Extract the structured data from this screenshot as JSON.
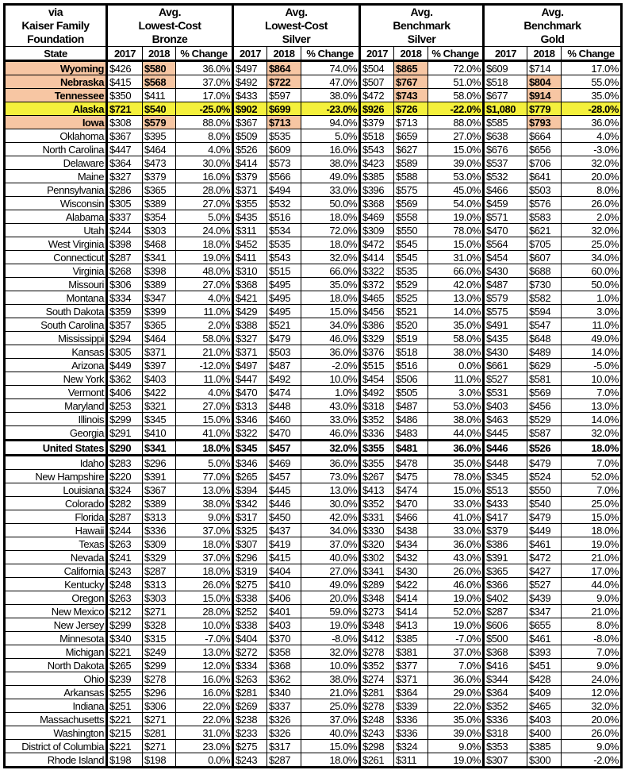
{
  "header": {
    "source": "via\nKaiser Family\nFoundation",
    "groups": [
      "Avg.\nLowest-Cost\nBronze",
      "Avg.\nLowest-Cost\nSilver",
      "Avg.\nBenchmark\nSilver",
      "Avg.\nBenchmark\nGold"
    ],
    "state_label": "State",
    "year1": "2017",
    "year2": "2018",
    "change": "% Change"
  },
  "colors": {
    "highlight": "#f7c6a3",
    "alaska": "#f4f03c"
  },
  "columns": [
    "state",
    "bronze_2017",
    "bronze_2018",
    "bronze_change",
    "lcsilver_2017",
    "lcsilver_2018",
    "lcsilver_change",
    "bmsilver_2017",
    "bmsilver_2018",
    "bmsilver_change",
    "gold_2017",
    "gold_2018",
    "gold_change"
  ],
  "rows": [
    {
      "cells": [
        "Wyoming",
        "$426",
        "$580",
        "36.0%",
        "$497",
        "$864",
        "74.0%",
        "$504",
        "$865",
        "72.0%",
        "$609",
        "$714",
        "17.0%"
      ],
      "highlight": [
        0,
        2,
        5,
        8
      ]
    },
    {
      "cells": [
        "Nebraska",
        "$415",
        "$568",
        "37.0%",
        "$492",
        "$722",
        "47.0%",
        "$507",
        "$767",
        "51.0%",
        "$518",
        "$804",
        "55.0%"
      ],
      "highlight": [
        0,
        2,
        5,
        8,
        11
      ]
    },
    {
      "cells": [
        "Tennessee",
        "$350",
        "$411",
        "17.0%",
        "$433",
        "$597",
        "38.0%",
        "$472",
        "$743",
        "58.0%",
        "$677",
        "$914",
        "35.0%"
      ],
      "highlight": [
        0,
        8,
        11
      ]
    },
    {
      "cells": [
        "Alaska",
        "$721",
        "$540",
        "-25.0%",
        "$902",
        "$699",
        "-23.0%",
        "$926",
        "$726",
        "-22.0%",
        "$1,080",
        "$779",
        "-28.0%"
      ],
      "style": "yellow"
    },
    {
      "cells": [
        "Iowa",
        "$308",
        "$579",
        "88.0%",
        "$367",
        "$713",
        "94.0%",
        "$379",
        "$713",
        "88.0%",
        "$585",
        "$793",
        "36.0%"
      ],
      "highlight": [
        0,
        2,
        5,
        11
      ]
    },
    {
      "cells": [
        "Oklahoma",
        "$367",
        "$395",
        "8.0%",
        "$509",
        "$535",
        "5.0%",
        "$518",
        "$659",
        "27.0%",
        "$638",
        "$664",
        "4.0%"
      ]
    },
    {
      "cells": [
        "North Carolina",
        "$447",
        "$464",
        "4.0%",
        "$526",
        "$609",
        "16.0%",
        "$543",
        "$627",
        "15.0%",
        "$676",
        "$656",
        "-3.0%"
      ]
    },
    {
      "cells": [
        "Delaware",
        "$364",
        "$473",
        "30.0%",
        "$414",
        "$573",
        "38.0%",
        "$423",
        "$589",
        "39.0%",
        "$537",
        "$706",
        "32.0%"
      ]
    },
    {
      "cells": [
        "Maine",
        "$327",
        "$379",
        "16.0%",
        "$379",
        "$566",
        "49.0%",
        "$385",
        "$588",
        "53.0%",
        "$532",
        "$641",
        "20.0%"
      ]
    },
    {
      "cells": [
        "Pennsylvania",
        "$286",
        "$365",
        "28.0%",
        "$371",
        "$494",
        "33.0%",
        "$396",
        "$575",
        "45.0%",
        "$466",
        "$503",
        "8.0%"
      ]
    },
    {
      "cells": [
        "Wisconsin",
        "$305",
        "$389",
        "27.0%",
        "$355",
        "$532",
        "50.0%",
        "$368",
        "$569",
        "54.0%",
        "$459",
        "$576",
        "26.0%"
      ]
    },
    {
      "cells": [
        "Alabama",
        "$337",
        "$354",
        "5.0%",
        "$435",
        "$516",
        "18.0%",
        "$469",
        "$558",
        "19.0%",
        "$571",
        "$583",
        "2.0%"
      ]
    },
    {
      "cells": [
        "Utah",
        "$244",
        "$303",
        "24.0%",
        "$311",
        "$534",
        "72.0%",
        "$309",
        "$550",
        "78.0%",
        "$470",
        "$621",
        "32.0%"
      ]
    },
    {
      "cells": [
        "West Virginia",
        "$398",
        "$468",
        "18.0%",
        "$452",
        "$535",
        "18.0%",
        "$472",
        "$545",
        "15.0%",
        "$564",
        "$705",
        "25.0%"
      ]
    },
    {
      "cells": [
        "Connecticut",
        "$287",
        "$341",
        "19.0%",
        "$411",
        "$543",
        "32.0%",
        "$414",
        "$545",
        "31.0%",
        "$454",
        "$607",
        "34.0%"
      ]
    },
    {
      "cells": [
        "Virginia",
        "$268",
        "$398",
        "48.0%",
        "$310",
        "$515",
        "66.0%",
        "$322",
        "$535",
        "66.0%",
        "$430",
        "$688",
        "60.0%"
      ]
    },
    {
      "cells": [
        "Missouri",
        "$306",
        "$389",
        "27.0%",
        "$368",
        "$495",
        "35.0%",
        "$372",
        "$529",
        "42.0%",
        "$487",
        "$730",
        "50.0%"
      ]
    },
    {
      "cells": [
        "Montana",
        "$334",
        "$347",
        "4.0%",
        "$421",
        "$495",
        "18.0%",
        "$465",
        "$525",
        "13.0%",
        "$579",
        "$582",
        "1.0%"
      ]
    },
    {
      "cells": [
        "South Dakota",
        "$359",
        "$399",
        "11.0%",
        "$429",
        "$495",
        "15.0%",
        "$456",
        "$521",
        "14.0%",
        "$575",
        "$594",
        "3.0%"
      ]
    },
    {
      "cells": [
        "South Carolina",
        "$357",
        "$365",
        "2.0%",
        "$388",
        "$521",
        "34.0%",
        "$386",
        "$520",
        "35.0%",
        "$491",
        "$547",
        "11.0%"
      ]
    },
    {
      "cells": [
        "Mississippi",
        "$294",
        "$464",
        "58.0%",
        "$327",
        "$479",
        "46.0%",
        "$329",
        "$519",
        "58.0%",
        "$435",
        "$648",
        "49.0%"
      ]
    },
    {
      "cells": [
        "Kansas",
        "$305",
        "$371",
        "21.0%",
        "$371",
        "$503",
        "36.0%",
        "$376",
        "$518",
        "38.0%",
        "$430",
        "$489",
        "14.0%"
      ]
    },
    {
      "cells": [
        "Arizona",
        "$449",
        "$397",
        "-12.0%",
        "$497",
        "$487",
        "-2.0%",
        "$515",
        "$516",
        "0.0%",
        "$661",
        "$629",
        "-5.0%"
      ]
    },
    {
      "cells": [
        "New York",
        "$362",
        "$403",
        "11.0%",
        "$447",
        "$492",
        "10.0%",
        "$454",
        "$506",
        "11.0%",
        "$527",
        "$581",
        "10.0%"
      ]
    },
    {
      "cells": [
        "Vermont",
        "$406",
        "$422",
        "4.0%",
        "$470",
        "$474",
        "1.0%",
        "$492",
        "$505",
        "3.0%",
        "$531",
        "$569",
        "7.0%"
      ]
    },
    {
      "cells": [
        "Maryland",
        "$253",
        "$321",
        "27.0%",
        "$313",
        "$448",
        "43.0%",
        "$318",
        "$487",
        "53.0%",
        "$403",
        "$456",
        "13.0%"
      ]
    },
    {
      "cells": [
        "Illinois",
        "$299",
        "$345",
        "15.0%",
        "$346",
        "$460",
        "33.0%",
        "$352",
        "$486",
        "38.0%",
        "$463",
        "$529",
        "14.0%"
      ]
    },
    {
      "cells": [
        "Georgia",
        "$291",
        "$410",
        "41.0%",
        "$322",
        "$470",
        "46.0%",
        "$336",
        "$483",
        "44.0%",
        "$445",
        "$587",
        "32.0%"
      ]
    },
    {
      "cells": [
        "United States",
        "$290",
        "$341",
        "18.0%",
        "$345",
        "$457",
        "32.0%",
        "$355",
        "$481",
        "36.0%",
        "$446",
        "$526",
        "18.0%"
      ],
      "style": "us"
    },
    {
      "cells": [
        "Idaho",
        "$283",
        "$296",
        "5.0%",
        "$346",
        "$469",
        "36.0%",
        "$355",
        "$478",
        "35.0%",
        "$448",
        "$479",
        "7.0%"
      ]
    },
    {
      "cells": [
        "New Hampshire",
        "$220",
        "$391",
        "77.0%",
        "$265",
        "$457",
        "73.0%",
        "$267",
        "$475",
        "78.0%",
        "$345",
        "$524",
        "52.0%"
      ]
    },
    {
      "cells": [
        "Louisiana",
        "$324",
        "$367",
        "13.0%",
        "$394",
        "$445",
        "13.0%",
        "$413",
        "$474",
        "15.0%",
        "$513",
        "$550",
        "7.0%"
      ]
    },
    {
      "cells": [
        "Colorado",
        "$282",
        "$389",
        "38.0%",
        "$342",
        "$446",
        "30.0%",
        "$352",
        "$470",
        "33.0%",
        "$433",
        "$540",
        "25.0%"
      ]
    },
    {
      "cells": [
        "Florida",
        "$287",
        "$313",
        "9.0%",
        "$317",
        "$450",
        "42.0%",
        "$331",
        "$466",
        "41.0%",
        "$417",
        "$479",
        "15.0%"
      ]
    },
    {
      "cells": [
        "Hawaii",
        "$244",
        "$336",
        "37.0%",
        "$325",
        "$437",
        "34.0%",
        "$330",
        "$438",
        "33.0%",
        "$379",
        "$449",
        "18.0%"
      ]
    },
    {
      "cells": [
        "Texas",
        "$263",
        "$309",
        "18.0%",
        "$307",
        "$419",
        "37.0%",
        "$320",
        "$434",
        "36.0%",
        "$386",
        "$461",
        "19.0%"
      ]
    },
    {
      "cells": [
        "Nevada",
        "$241",
        "$329",
        "37.0%",
        "$296",
        "$415",
        "40.0%",
        "$302",
        "$432",
        "43.0%",
        "$391",
        "$472",
        "21.0%"
      ]
    },
    {
      "cells": [
        "California",
        "$243",
        "$287",
        "18.0%",
        "$319",
        "$404",
        "27.0%",
        "$341",
        "$430",
        "26.0%",
        "$365",
        "$427",
        "17.0%"
      ]
    },
    {
      "cells": [
        "Kentucky",
        "$248",
        "$313",
        "26.0%",
        "$275",
        "$410",
        "49.0%",
        "$289",
        "$422",
        "46.0%",
        "$366",
        "$527",
        "44.0%"
      ]
    },
    {
      "cells": [
        "Oregon",
        "$263",
        "$303",
        "15.0%",
        "$338",
        "$406",
        "20.0%",
        "$348",
        "$414",
        "19.0%",
        "$402",
        "$439",
        "9.0%"
      ]
    },
    {
      "cells": [
        "New Mexico",
        "$212",
        "$271",
        "28.0%",
        "$252",
        "$401",
        "59.0%",
        "$273",
        "$414",
        "52.0%",
        "$287",
        "$347",
        "21.0%"
      ]
    },
    {
      "cells": [
        "New Jersey",
        "$299",
        "$328",
        "10.0%",
        "$338",
        "$403",
        "19.0%",
        "$348",
        "$413",
        "19.0%",
        "$606",
        "$655",
        "8.0%"
      ]
    },
    {
      "cells": [
        "Minnesota",
        "$340",
        "$315",
        "-7.0%",
        "$404",
        "$370",
        "-8.0%",
        "$412",
        "$385",
        "-7.0%",
        "$500",
        "$461",
        "-8.0%"
      ]
    },
    {
      "cells": [
        "Michigan",
        "$221",
        "$249",
        "13.0%",
        "$272",
        "$358",
        "32.0%",
        "$278",
        "$381",
        "37.0%",
        "$368",
        "$393",
        "7.0%"
      ]
    },
    {
      "cells": [
        "North Dakota",
        "$265",
        "$299",
        "12.0%",
        "$334",
        "$368",
        "10.0%",
        "$352",
        "$377",
        "7.0%",
        "$416",
        "$451",
        "9.0%"
      ]
    },
    {
      "cells": [
        "Ohio",
        "$239",
        "$278",
        "16.0%",
        "$263",
        "$362",
        "38.0%",
        "$274",
        "$371",
        "36.0%",
        "$344",
        "$428",
        "24.0%"
      ]
    },
    {
      "cells": [
        "Arkansas",
        "$255",
        "$296",
        "16.0%",
        "$281",
        "$340",
        "21.0%",
        "$281",
        "$364",
        "29.0%",
        "$364",
        "$409",
        "12.0%"
      ]
    },
    {
      "cells": [
        "Indiana",
        "$251",
        "$306",
        "22.0%",
        "$269",
        "$337",
        "25.0%",
        "$278",
        "$339",
        "22.0%",
        "$352",
        "$465",
        "32.0%"
      ]
    },
    {
      "cells": [
        "Massachusetts",
        "$221",
        "$271",
        "22.0%",
        "$238",
        "$326",
        "37.0%",
        "$248",
        "$336",
        "35.0%",
        "$336",
        "$403",
        "20.0%"
      ]
    },
    {
      "cells": [
        "Washington",
        "$215",
        "$281",
        "31.0%",
        "$233",
        "$326",
        "40.0%",
        "$243",
        "$336",
        "39.0%",
        "$318",
        "$400",
        "26.0%"
      ]
    },
    {
      "cells": [
        "District of Columbia",
        "$221",
        "$271",
        "23.0%",
        "$275",
        "$317",
        "15.0%",
        "$298",
        "$324",
        "9.0%",
        "$353",
        "$385",
        "9.0%"
      ]
    },
    {
      "cells": [
        "Rhode Island",
        "$198",
        "$198",
        "0.0%",
        "$243",
        "$287",
        "18.0%",
        "$261",
        "$311",
        "19.0%",
        "$307",
        "$300",
        "-2.0%"
      ]
    }
  ]
}
